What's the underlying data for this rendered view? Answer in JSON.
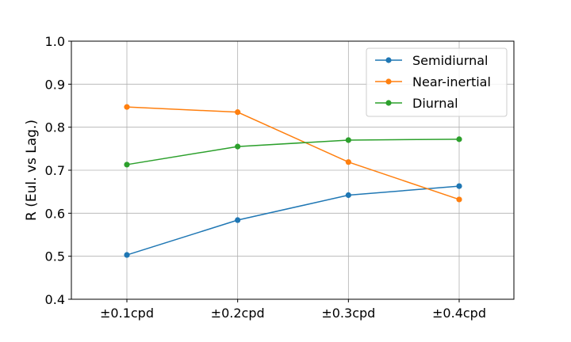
{
  "chart_data": {
    "type": "line",
    "title": "",
    "xlabel": "",
    "ylabel": "R (Eul. vs Lag.)",
    "categories": [
      "±0.1cpd",
      "±0.2cpd",
      "±0.3cpd",
      "±0.4cpd"
    ],
    "ylim": [
      0.4,
      1.0
    ],
    "yticks": [
      "0.4",
      "0.5",
      "0.6",
      "0.7",
      "0.8",
      "0.9",
      "1.0"
    ],
    "grid": true,
    "legend_position": "top-right",
    "series": [
      {
        "name": "Semidiurnal",
        "color": "#1f77b4",
        "values": [
          0.503,
          0.584,
          0.642,
          0.663
        ]
      },
      {
        "name": "Near-inertial",
        "color": "#ff7f0e",
        "values": [
          0.847,
          0.835,
          0.719,
          0.632
        ]
      },
      {
        "name": "Diurnal",
        "color": "#2ca02c",
        "values": [
          0.713,
          0.755,
          0.77,
          0.772
        ]
      }
    ]
  }
}
